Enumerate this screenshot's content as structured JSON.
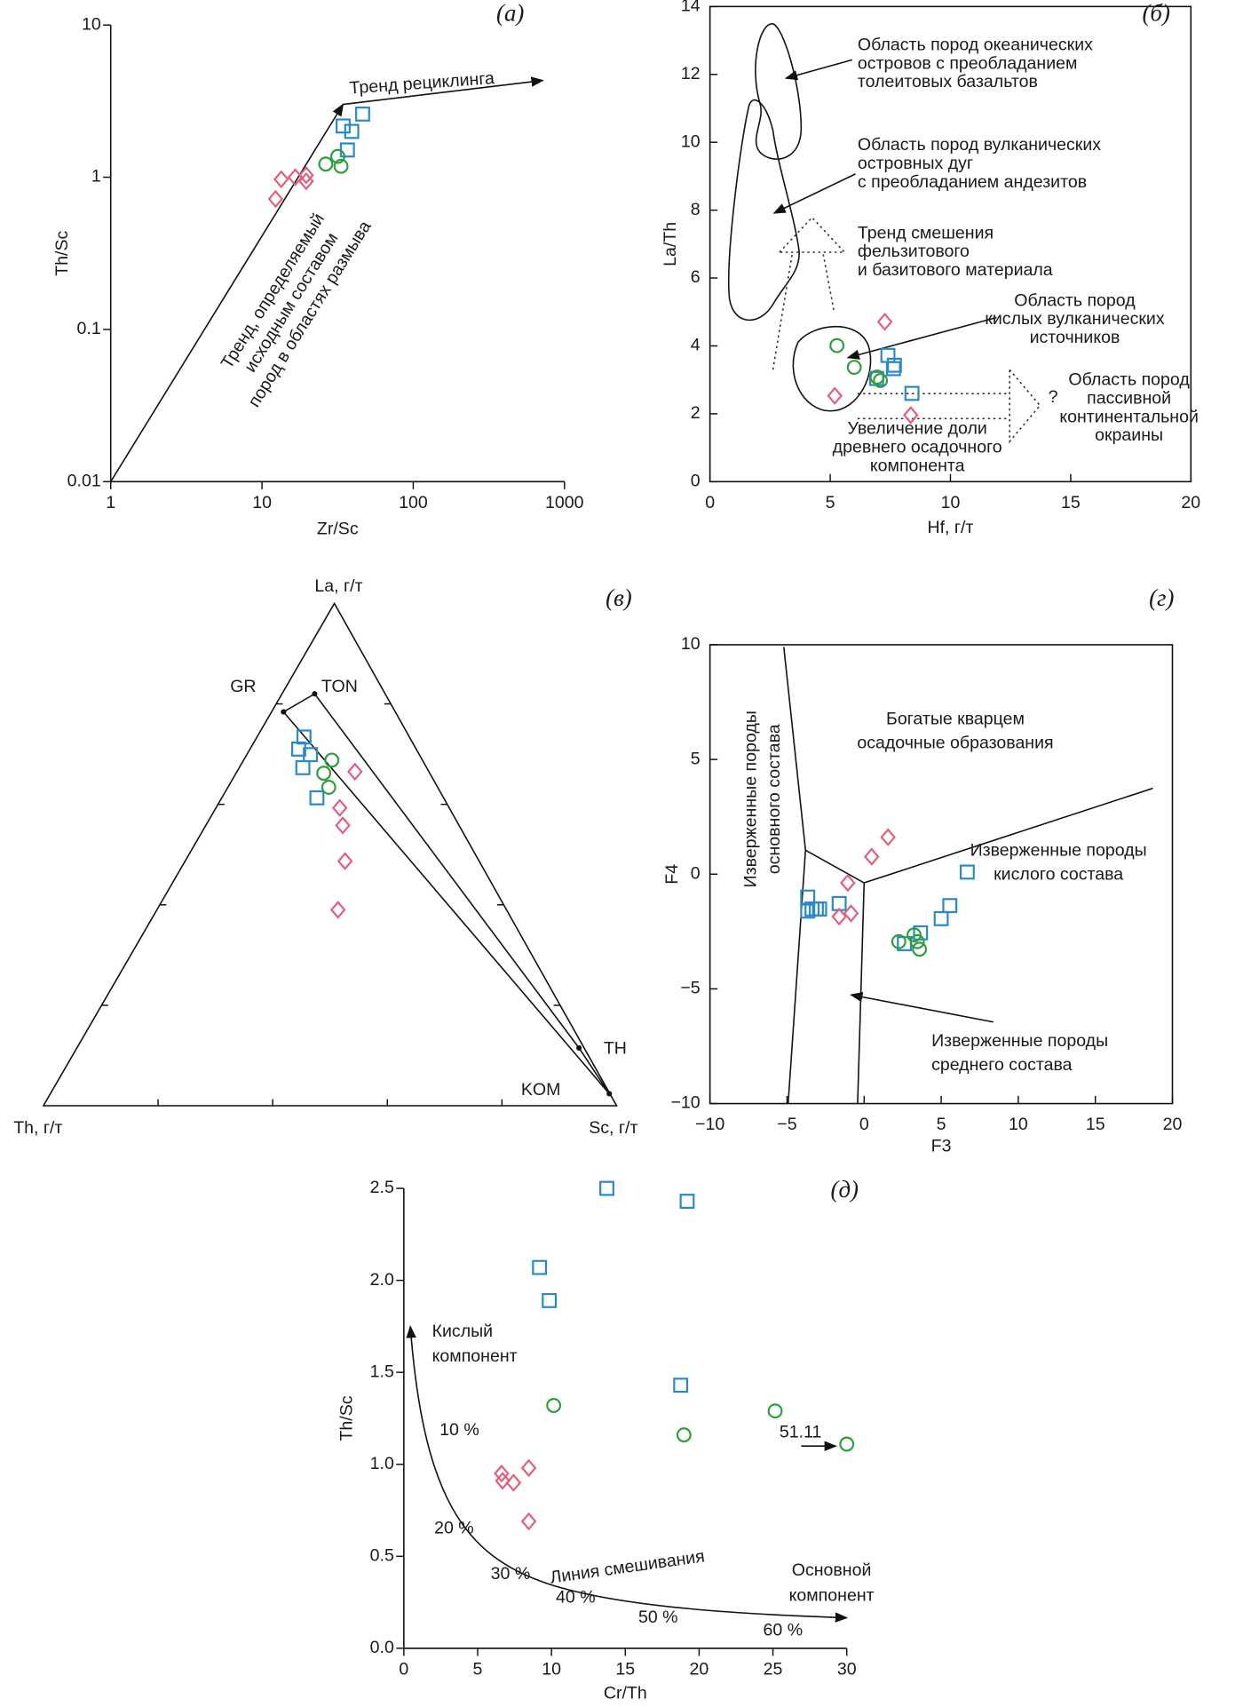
{
  "chart_data": [
    {
      "type": "scatter",
      "panel_label": "(а)",
      "x_label": "Zr/Sc",
      "y_label": "Th/Sc",
      "log_x": true,
      "log_y": true,
      "xlim": [
        1,
        1000
      ],
      "ylim": [
        0.01,
        10
      ],
      "xticks": [
        1,
        10,
        100,
        1000
      ],
      "yticks": [
        0.01,
        0.1,
        1,
        10
      ],
      "series": [
        {
          "marker": "diamond",
          "color": "#e0607e",
          "x": [
            12.3,
            13.4,
            16.6,
            19.6,
            19.6
          ],
          "values": [
            0.72,
            0.97,
            1.0,
            1.03,
            0.94
          ]
        },
        {
          "marker": "square",
          "color": "#2a8ac8",
          "x": [
            34.4,
            39.2,
            36.7,
            46.3
          ],
          "values": [
            2.17,
            2.0,
            1.51,
            2.6
          ]
        },
        {
          "marker": "circle",
          "color": "#2e9e3e",
          "x": [
            26.4,
            31.7,
            33.3
          ],
          "values": [
            1.22,
            1.37,
            1.18
          ]
        }
      ],
      "annotations": [
        [
          "Тренд рециклинга"
        ],
        [
          "Тренд, определяемый",
          "исходным составом",
          "пород в областях размыва"
        ]
      ]
    },
    {
      "type": "scatter",
      "panel_label": "(б)",
      "x_label": "Hf, г/т",
      "y_label": "La/Th",
      "xlim": [
        0,
        20
      ],
      "ylim": [
        0,
        14
      ],
      "xticks": [
        0,
        5,
        10,
        15,
        20
      ],
      "yticks": [
        0,
        2,
        4,
        6,
        8,
        10,
        12,
        14
      ],
      "series": [
        {
          "marker": "diamond",
          "color": "#e0607e",
          "x": [
            7.27,
            5.19,
            8.35
          ],
          "values": [
            4.71,
            2.53,
            1.96
          ]
        },
        {
          "marker": "square",
          "color": "#2a8ac8",
          "x": [
            7.4,
            7.63,
            6.93,
            8.4,
            7.67
          ],
          "values": [
            3.72,
            3.33,
            3.04,
            2.6,
            3.43
          ]
        },
        {
          "marker": "circle",
          "color": "#2e9e3e",
          "x": [
            5.28,
            6.0,
            6.95,
            7.09
          ],
          "values": [
            4.01,
            3.37,
            3.08,
            2.98
          ]
        }
      ],
      "annotations": [
        [
          "Область пород океанических",
          "островов с преобладанием",
          "толеитовых базальтов"
        ],
        [
          "Область пород вулканических",
          "островных дуг",
          "с преобладанием андезитов"
        ],
        [
          "Тренд смешения",
          "фельзитового",
          "и базитового материала"
        ],
        [
          "Область пород",
          "кислых вулканических",
          "источников"
        ],
        [
          "Увеличение доли",
          "древнего осадочного",
          "компонента"
        ],
        [
          "Область пород",
          "пассивной",
          "континентальной",
          "окраины"
        ],
        "?"
      ]
    },
    {
      "type": "ternary",
      "panel_label": "(в)",
      "vertex_labels": [
        "La, г/т",
        "Th, г/т",
        "Sc, г/т"
      ],
      "ticks": [
        0.2,
        0.4,
        0.6,
        0.8
      ],
      "series": [
        {
          "marker": "square",
          "color": "#2a8ac8",
          "values": [
            [
              0.734,
              0.184,
              0.082
            ],
            [
              0.71,
              0.205,
              0.085
            ],
            [
              0.699,
              0.19,
              0.111
            ],
            [
              0.673,
              0.216,
              0.111
            ],
            [
              0.613,
              0.221,
              0.166
            ]
          ]
        },
        {
          "marker": "circle",
          "color": "#2e9e3e",
          "values": [
            [
              0.688,
              0.158,
              0.154
            ],
            [
              0.662,
              0.185,
              0.153
            ],
            [
              0.634,
              0.19,
              0.176
            ]
          ]
        },
        {
          "marker": "diamond",
          "color": "#e0607e",
          "values": [
            [
              0.665,
              0.129,
              0.206
            ],
            [
              0.593,
              0.191,
              0.216
            ],
            [
              0.558,
              0.203,
              0.239
            ],
            [
              0.487,
              0.234,
              0.279
            ],
            [
              0.39,
              0.294,
              0.316
            ]
          ]
        }
      ],
      "reference_points": [
        {
          "label": "GR",
          "values": [
            0.784,
            0.195,
            0.021
          ]
        },
        {
          "label": "TON",
          "values": [
            0.82,
            0.123,
            0.057
          ]
        },
        {
          "label": "TH",
          "values": [
            0.115,
            0.009,
            0.876
          ]
        },
        {
          "label": "KOM",
          "values": [
            0.024,
            0.001,
            0.975
          ]
        }
      ]
    },
    {
      "type": "scatter",
      "panel_label": "(г)",
      "x_label": "F3",
      "y_label": "F4",
      "xlim": [
        -10,
        20
      ],
      "ylim": [
        -10,
        10
      ],
      "xticks": [
        {
          "value": -10,
          "label": "−10"
        },
        {
          "value": -5,
          "label": "−5"
        },
        0,
        5,
        10,
        15,
        20
      ],
      "yticks": [
        {
          "value": -10,
          "label": "−10"
        },
        {
          "value": -5,
          "label": "−5"
        },
        0,
        5,
        10
      ],
      "series": [
        {
          "marker": "square",
          "color": "#2a8ac8",
          "x": [
            6.69,
            5.56,
            5.0,
            3.66,
            2.61,
            -1.62,
            -3.1,
            -3.38,
            -2.89,
            -3.66,
            -3.66
          ],
          "values": [
            0.09,
            -1.37,
            -1.94,
            -2.56,
            -3.03,
            -1.28,
            -1.52,
            -1.52,
            -1.52,
            -1.0,
            -1.61
          ]
        },
        {
          "marker": "diamond",
          "color": "#e0607e",
          "x": [
            1.55,
            0.49,
            -1.06,
            -0.85,
            -1.62
          ],
          "values": [
            1.61,
            0.76,
            -0.38,
            -1.71,
            -1.85
          ]
        },
        {
          "marker": "circle",
          "color": "#2e9e3e",
          "x": [
            2.25,
            3.24,
            3.45,
            3.59
          ],
          "values": [
            -2.94,
            -2.65,
            -2.94,
            -3.27
          ]
        }
      ],
      "annotations": [
        [
          "Богатые кварцем",
          "осадочные образования"
        ],
        [
          "Изверженные породы",
          "основного состава"
        ],
        [
          "Изверженные породы",
          "кислого состава"
        ],
        [
          "Изверженные породы",
          "среднего состава"
        ]
      ]
    },
    {
      "type": "scatter",
      "panel_label": "(д)",
      "x_label": "Cr/Th",
      "y_label": "Th/Sc",
      "xlim": [
        0,
        30
      ],
      "ylim": [
        0,
        2.5
      ],
      "xticks": [
        0,
        5,
        10,
        15,
        20,
        25,
        30
      ],
      "yticks": [
        {
          "value": 0,
          "label": "0.0"
        },
        0.5,
        {
          "value": 1,
          "label": "1.0"
        },
        1.5,
        {
          "value": 2,
          "label": "2.0"
        },
        2.5
      ],
      "series": [
        {
          "marker": "square",
          "color": "#2a8ac8",
          "x": [
            13.75,
            19.19,
            9.19,
            9.85,
            18.75
          ],
          "values": [
            2.5,
            2.43,
            2.07,
            1.89,
            1.43
          ]
        },
        {
          "marker": "circle",
          "color": "#2e9e3e",
          "x": [
            10.15,
            25.15,
            18.97,
            30.0
          ],
          "values": [
            1.32,
            1.29,
            1.16,
            1.11
          ]
        },
        {
          "marker": "diamond",
          "color": "#e0607e",
          "x": [
            6.62,
            6.69,
            7.43,
            8.46,
            8.46
          ],
          "values": [
            0.95,
            0.91,
            0.9,
            0.98,
            0.69
          ]
        }
      ],
      "annotations": [
        [
          "Кислый",
          "компонент"
        ],
        [
          "Основной",
          "компонент"
        ],
        "Линия смешивания",
        "51.11",
        "10 %",
        "20 %",
        "30 %",
        "40 %",
        "50 %",
        "60 %"
      ]
    }
  ]
}
